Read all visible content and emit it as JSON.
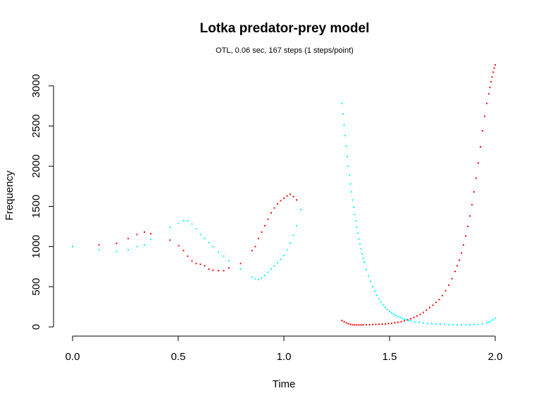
{
  "chart_data": {
    "type": "scatter",
    "title": "Lotka predator-prey model",
    "subtitle": "OTL, 0.06 sec, 167 steps (1 steps/point)",
    "xlabel": "Time",
    "ylabel": "Frequency",
    "xlim": [
      0,
      2
    ],
    "ylim": [
      0,
      3260
    ],
    "xticks": [
      "0.0",
      "0.5",
      "1.0",
      "1.5",
      "2.0"
    ],
    "yticks": [
      "0",
      "500",
      "1000",
      "1500",
      "2000",
      "2500",
      "3000"
    ],
    "grid": false,
    "legend": "none",
    "colors": {
      "series_red": "#ff0000",
      "series_cyan": "#00ffff"
    },
    "series": [
      {
        "x": [
          0.0,
          0.125,
          0.208,
          0.263,
          0.305,
          0.34,
          0.37,
          0.461,
          0.502,
          0.525,
          0.545,
          0.565,
          0.585,
          0.605,
          0.625,
          0.645,
          0.665,
          0.69,
          0.715,
          0.74,
          0.795,
          0.85,
          0.865,
          0.88,
          0.895,
          0.91,
          0.925,
          0.94,
          0.955,
          0.97,
          0.985,
          1.0,
          1.015,
          1.03,
          1.045,
          1.06,
          1.08,
          1.275,
          1.285,
          1.295,
          1.305,
          1.315,
          1.325,
          1.335,
          1.345,
          1.355,
          1.365,
          1.375,
          1.39,
          1.405,
          1.42,
          1.435,
          1.45,
          1.465,
          1.48,
          1.495,
          1.51,
          1.525,
          1.54,
          1.555,
          1.57,
          1.585,
          1.6,
          1.615,
          1.63,
          1.645,
          1.66,
          1.675,
          1.69,
          1.705,
          1.72,
          1.735,
          1.75,
          1.765,
          1.78,
          1.795,
          1.81,
          1.82,
          1.83,
          1.84,
          1.85,
          1.86,
          1.87,
          1.88,
          1.89,
          1.9,
          1.91,
          1.92,
          1.93,
          1.94,
          1.95,
          1.96,
          1.97,
          1.975,
          1.98,
          1.985,
          1.99,
          1.995,
          2.0
        ],
        "y": [
          1000,
          1020,
          1040,
          1100,
          1150,
          1180,
          1160,
          1080,
          1010,
          950,
          880,
          820,
          790,
          780,
          760,
          720,
          705,
          700,
          700,
          735,
          790,
          950,
          1000,
          1100,
          1180,
          1260,
          1340,
          1420,
          1480,
          1530,
          1570,
          1600,
          1630,
          1650,
          1620,
          1580,
          1460,
          80,
          65,
          50,
          40,
          32,
          28,
          25,
          25,
          25,
          25,
          26,
          28,
          28,
          30,
          32,
          34,
          35,
          38,
          42,
          46,
          52,
          58,
          66,
          75,
          88,
          102,
          118,
          136,
          156,
          180,
          210,
          240,
          270,
          305,
          340,
          390,
          450,
          520,
          600,
          690,
          760,
          830,
          920,
          1020,
          1130,
          1250,
          1380,
          1520,
          1680,
          1850,
          2040,
          2240,
          2440,
          2620,
          2780,
          2900,
          2980,
          3050,
          3110,
          3170,
          3220,
          3260
        ]
      },
      {
        "x": [
          0.0,
          0.125,
          0.208,
          0.263,
          0.305,
          0.34,
          0.37,
          0.461,
          0.502,
          0.525,
          0.545,
          0.565,
          0.585,
          0.605,
          0.625,
          0.645,
          0.665,
          0.69,
          0.715,
          0.74,
          0.795,
          0.85,
          0.865,
          0.88,
          0.895,
          0.91,
          0.925,
          0.94,
          0.955,
          0.97,
          0.985,
          1.0,
          1.015,
          1.03,
          1.045,
          1.06,
          1.08,
          1.275,
          1.28,
          1.285,
          1.29,
          1.295,
          1.3,
          1.305,
          1.31,
          1.315,
          1.32,
          1.325,
          1.33,
          1.335,
          1.34,
          1.345,
          1.35,
          1.355,
          1.36,
          1.365,
          1.37,
          1.375,
          1.38,
          1.39,
          1.4,
          1.41,
          1.42,
          1.43,
          1.44,
          1.45,
          1.46,
          1.47,
          1.48,
          1.49,
          1.5,
          1.51,
          1.52,
          1.53,
          1.54,
          1.55,
          1.56,
          1.57,
          1.58,
          1.59,
          1.6,
          1.62,
          1.64,
          1.66,
          1.68,
          1.7,
          1.72,
          1.74,
          1.76,
          1.78,
          1.8,
          1.82,
          1.84,
          1.86,
          1.88,
          1.9,
          1.92,
          1.94,
          1.96,
          1.97,
          1.98,
          1.99,
          2.0
        ],
        "y": [
          1000,
          960,
          940,
          960,
          1000,
          1020,
          1090,
          1240,
          1290,
          1320,
          1320,
          1280,
          1220,
          1150,
          1100,
          1050,
          1000,
          930,
          880,
          820,
          720,
          620,
          600,
          590,
          610,
          640,
          680,
          720,
          760,
          800,
          840,
          890,
          960,
          1040,
          1140,
          1260,
          1460,
          2780,
          2650,
          2510,
          2380,
          2250,
          2120,
          2000,
          1890,
          1780,
          1680,
          1580,
          1490,
          1400,
          1320,
          1240,
          1165,
          1095,
          1030,
          970,
          910,
          855,
          805,
          715,
          635,
          565,
          500,
          445,
          395,
          350,
          310,
          275,
          245,
          218,
          195,
          175,
          157,
          142,
          128,
          116,
          105,
          96,
          88,
          81,
          75,
          65,
          57,
          50,
          45,
          41,
          37,
          34,
          32,
          30,
          28,
          27,
          26,
          26,
          27,
          29,
          33,
          40,
          52,
          62,
          75,
          90,
          108
        ]
      }
    ]
  }
}
